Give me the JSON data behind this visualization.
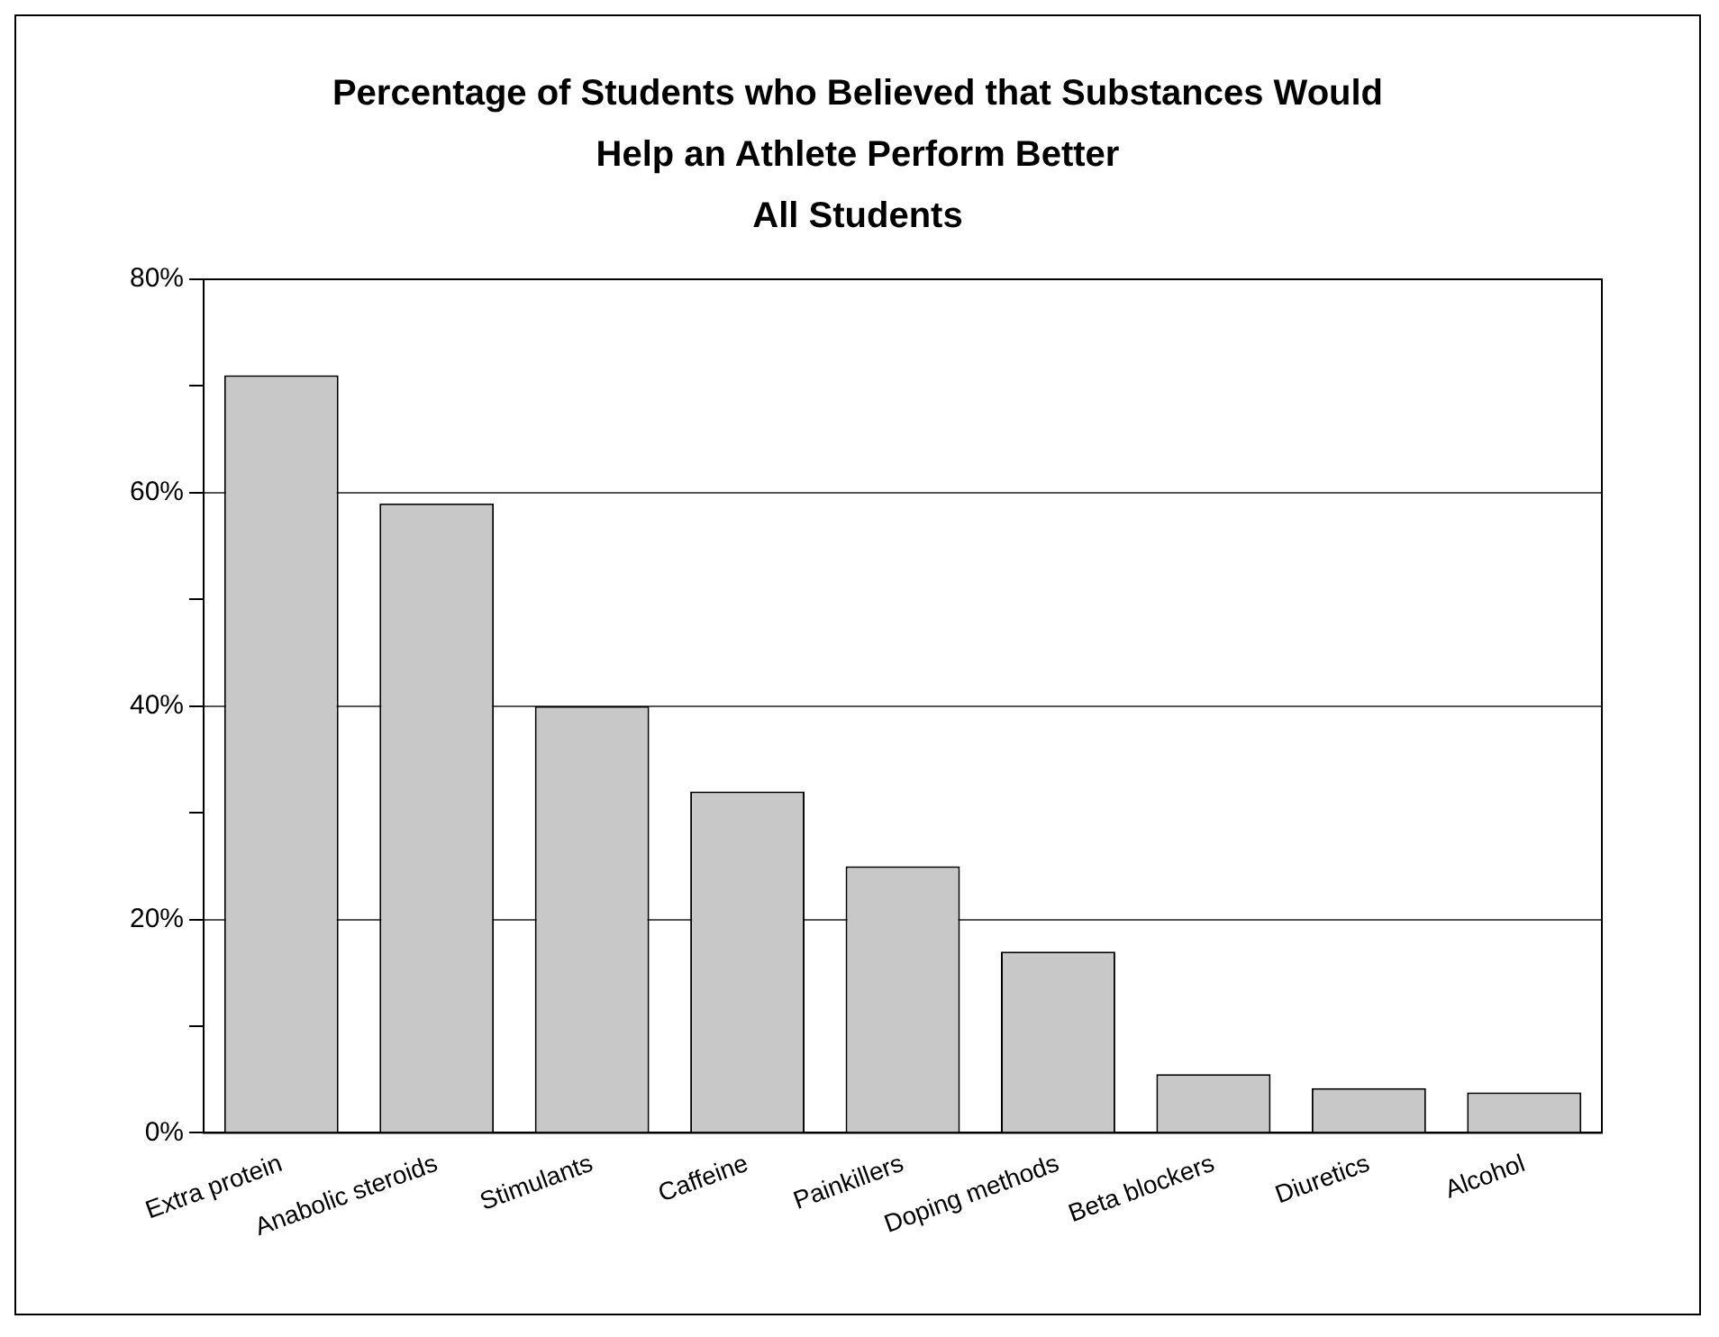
{
  "chart_data": {
    "type": "bar",
    "title": "Percentage of Students who Believed that Substances Would Help an Athlete Perform Better",
    "subtitle": "All Students",
    "categories": [
      "Extra protein",
      "Anabolic steroids",
      "Stimulants",
      "Caffeine",
      "Painkillers",
      "Doping methods",
      "Beta blockers",
      "Diuretics",
      "Alcohol"
    ],
    "values": [
      71,
      59,
      40,
      32,
      25,
      17,
      5.5,
      4.2,
      3.8
    ],
    "color": "#c8c8c8",
    "ylim": [
      0,
      80
    ],
    "yticks": [
      {
        "value": 0,
        "label": "0%"
      },
      {
        "value": 10,
        "label": null
      },
      {
        "value": 20,
        "label": "20%"
      },
      {
        "value": 30,
        "label": null
      },
      {
        "value": 40,
        "label": "40%"
      },
      {
        "value": 50,
        "label": null
      },
      {
        "value": 60,
        "label": "60%"
      },
      {
        "value": 70,
        "label": null
      },
      {
        "value": 80,
        "label": "80%"
      }
    ],
    "grid": "y"
  }
}
